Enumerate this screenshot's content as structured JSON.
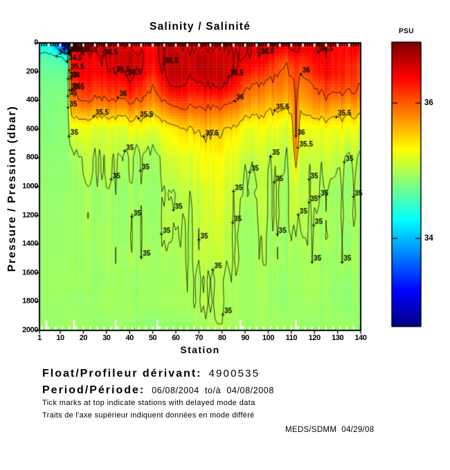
{
  "title": "Salinity / Salinité",
  "axes": {
    "xlabel": "Station",
    "ylabel": "Pressure / Pression (dbar)",
    "x_ticks": [
      1,
      10,
      20,
      30,
      40,
      50,
      60,
      70,
      80,
      90,
      100,
      110,
      120,
      130,
      140
    ],
    "y_ticks": [
      0,
      200,
      400,
      600,
      800,
      1000,
      1200,
      1400,
      1600,
      1800,
      2000
    ]
  },
  "colorbar": {
    "label": "PSU",
    "ticks": [
      36,
      34
    ],
    "vmin": 32.7,
    "vmax": 36.9
  },
  "footer": {
    "float_label": "Float/Profileur dérivant:",
    "float_value": "4900535",
    "period_label": "Period/Période:",
    "period_value": "06/08/2004  to/à  04/08/2008",
    "note_en": "Tick marks at top indicate stations with delayed mode data",
    "note_fr": "Traits de l'axe supérieur indiquent données en mode différé",
    "credit": "MEDS/SDMM  04/29/08"
  },
  "chart_data": {
    "type": "heatmap",
    "title": "Salinity / Salinité",
    "xlabel": "Station",
    "ylabel": "Pressure / Pression (dbar)",
    "colorbar_label": "PSU",
    "colormap": "jet",
    "x_range": [
      1,
      140
    ],
    "y_range": [
      0,
      2000
    ],
    "value_range": [
      32.7,
      36.9
    ],
    "colorbar_ticks": [
      34,
      36
    ],
    "contour_levels": [
      34,
      34.5,
      35,
      35.5,
      36,
      36.5
    ],
    "grid": {
      "stations": [
        1,
        6,
        11,
        13,
        15,
        20,
        25,
        30,
        40,
        50,
        60,
        70,
        75,
        80,
        90,
        100,
        110,
        112,
        114,
        125,
        140
      ],
      "pressures": [
        0,
        50,
        100,
        200,
        300,
        400,
        500,
        600,
        800,
        1000,
        1300,
        1600,
        2000
      ],
      "salinity": [
        [
          34.3,
          34.2,
          33.2,
          33.0,
          36.45,
          36.5,
          36.45,
          36.5,
          36.5,
          36.45,
          36.5,
          36.5,
          36.5,
          36.5,
          36.45,
          36.45,
          36.4,
          36.45,
          36.4,
          36.45,
          36.4
        ],
        [
          34.45,
          34.4,
          33.8,
          33.5,
          36.5,
          36.55,
          36.5,
          36.55,
          36.55,
          36.45,
          36.55,
          36.55,
          36.6,
          36.55,
          36.5,
          36.45,
          36.4,
          36.5,
          36.4,
          36.5,
          36.45
        ],
        [
          34.6,
          34.6,
          34.5,
          34.4,
          36.45,
          36.5,
          36.45,
          36.5,
          36.62,
          36.4,
          36.62,
          36.62,
          36.66,
          36.62,
          36.45,
          36.3,
          36.2,
          36.3,
          36.2,
          36.45,
          36.3
        ],
        [
          34.7,
          34.72,
          34.7,
          34.65,
          36.4,
          36.45,
          36.4,
          36.45,
          36.6,
          36.3,
          36.65,
          36.6,
          36.68,
          36.62,
          36.35,
          36.1,
          36.0,
          36.2,
          36.05,
          36.4,
          36.15
        ],
        [
          34.75,
          34.78,
          34.76,
          34.72,
          36.15,
          36.25,
          36.15,
          36.25,
          36.4,
          36.05,
          36.5,
          36.45,
          36.5,
          36.45,
          36.15,
          35.9,
          35.85,
          36.2,
          35.9,
          36.15,
          36.0
        ],
        [
          34.78,
          34.8,
          34.8,
          34.76,
          35.9,
          36.0,
          35.9,
          35.95,
          36.05,
          35.85,
          36.15,
          36.1,
          36.15,
          36.1,
          35.9,
          35.7,
          35.68,
          36.15,
          35.7,
          35.9,
          35.8
        ],
        [
          34.8,
          34.82,
          34.82,
          34.79,
          35.55,
          35.6,
          35.52,
          35.56,
          35.6,
          35.5,
          35.78,
          35.8,
          35.85,
          35.8,
          35.6,
          35.45,
          35.4,
          36.12,
          35.45,
          35.6,
          35.5
        ],
        [
          34.83,
          34.84,
          34.84,
          34.82,
          35.2,
          35.25,
          35.18,
          35.22,
          35.25,
          35.2,
          35.4,
          35.5,
          35.6,
          35.5,
          35.3,
          35.2,
          35.15,
          36.1,
          35.2,
          35.3,
          35.25
        ],
        [
          34.86,
          34.87,
          34.87,
          34.86,
          35.0,
          35.02,
          34.99,
          35.01,
          35.0,
          34.99,
          35.08,
          35.25,
          35.32,
          35.25,
          35.1,
          35.06,
          35.05,
          35.7,
          35.07,
          35.09,
          35.05
        ],
        [
          34.88,
          34.88,
          34.88,
          34.88,
          34.96,
          34.98,
          34.96,
          34.97,
          34.96,
          34.96,
          35.02,
          35.14,
          35.2,
          35.14,
          35.0,
          34.99,
          34.99,
          35.22,
          35.0,
          35.01,
          34.99
        ],
        [
          34.9,
          34.9,
          34.9,
          34.9,
          34.94,
          34.95,
          34.94,
          34.95,
          34.94,
          34.94,
          34.97,
          35.06,
          35.1,
          35.06,
          34.96,
          34.95,
          34.96,
          35.02,
          34.97,
          34.96,
          34.95
        ],
        [
          34.91,
          34.91,
          34.91,
          34.91,
          34.93,
          34.93,
          34.93,
          34.93,
          34.93,
          34.93,
          34.94,
          35.01,
          35.05,
          35.01,
          34.93,
          34.92,
          34.92,
          34.94,
          34.92,
          34.93,
          34.92
        ],
        [
          34.91,
          34.91,
          34.91,
          34.91,
          34.91,
          34.91,
          34.91,
          34.91,
          34.91,
          34.91,
          34.91,
          34.96,
          34.98,
          34.96,
          34.91,
          34.9,
          34.9,
          34.9,
          34.9,
          34.9,
          34.89
        ]
      ]
    }
  }
}
